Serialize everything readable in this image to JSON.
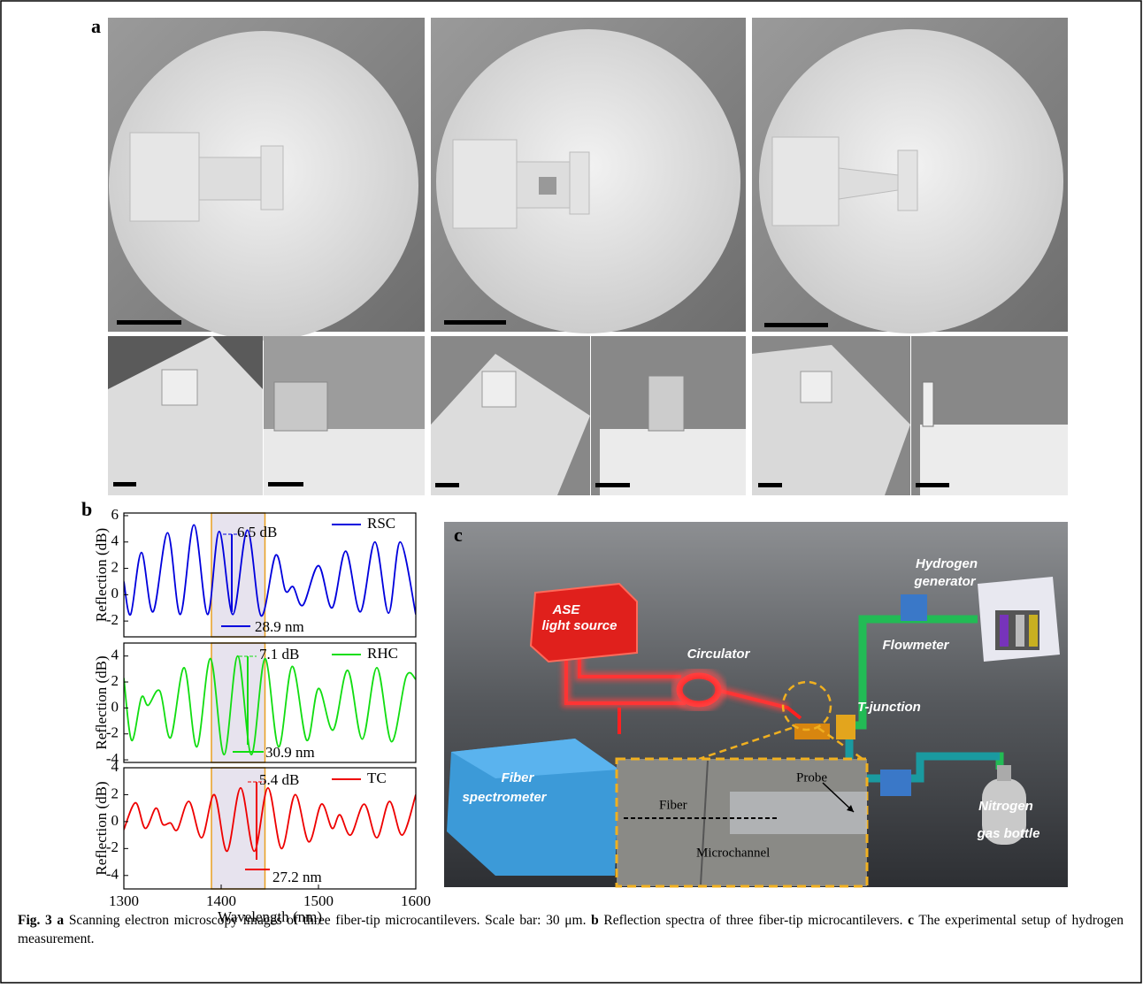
{
  "figure": {
    "panel_labels": [
      "a",
      "b",
      "c"
    ],
    "caption": {
      "fig": "Fig. 3",
      "a": "a",
      "a_text": "Scanning electron microscopy images of three fiber-tip microcantilevers. Scale bar: 30 μm.",
      "b": "b",
      "b_text": "Reflection spectra of three fiber-tip microcantilevers.",
      "c": "c",
      "c_text": "The experimental setup of hydrogen measurement."
    }
  },
  "setup": {
    "ase_1": "ASE",
    "ase_2": "light source",
    "circulator": "Circulator",
    "spectrometer_1": "Fiber",
    "spectrometer_2": "spectrometer",
    "hydrogen_1": "Hydrogen",
    "hydrogen_2": "generator",
    "flowmeter": "Flowmeter",
    "tjunction": "T-junction",
    "nitrogen_1": "Nitrogen",
    "nitrogen_2": "gas bottle",
    "probe": "Probe",
    "fiber": "Fiber",
    "microchannel": "Microchannel"
  },
  "chart_data": [
    {
      "type": "line",
      "y_label": "Reflection (dB)",
      "xlim": [
        1300,
        1600
      ],
      "ylim": [
        -3.2,
        6.2
      ],
      "yticks": [
        -2,
        0,
        2,
        4,
        6
      ],
      "highlight_x": [
        1390,
        1445
      ],
      "annotations": [
        "6.5 dB",
        "28.9 nm"
      ],
      "series": [
        {
          "name": "RSC",
          "color": "#0000dd",
          "x": [
            1300,
            1307,
            1318,
            1330,
            1345,
            1358,
            1372,
            1386,
            1398,
            1412,
            1427,
            1441,
            1456,
            1466,
            1474,
            1484,
            1500,
            1514,
            1528,
            1543,
            1558,
            1572,
            1584,
            1600
          ],
          "values": [
            1,
            -1.5,
            3.2,
            -1.3,
            4.7,
            -1.5,
            5.3,
            -1.5,
            4.8,
            -1.5,
            4.9,
            -1.6,
            3.0,
            0.3,
            0.6,
            -0.8,
            2.2,
            -1.0,
            3.3,
            -1.3,
            4.0,
            -1.4,
            4.0,
            -1.5
          ]
        }
      ]
    },
    {
      "type": "line",
      "y_label": "Reflection (dB)",
      "xlim": [
        1300,
        1600
      ],
      "ylim": [
        -4.2,
        5
      ],
      "yticks": [
        -4,
        -2,
        0,
        2,
        4
      ],
      "highlight_x": [
        1390,
        1445
      ],
      "annotations": [
        "7.1 dB",
        "30.9 nm"
      ],
      "series": [
        {
          "name": "RHC",
          "color": "#11dd11",
          "x": [
            1300,
            1308,
            1318,
            1325,
            1337,
            1348,
            1362,
            1375,
            1389,
            1403,
            1417,
            1431,
            1445,
            1459,
            1473,
            1488,
            1500,
            1515,
            1530,
            1545,
            1560,
            1575,
            1590,
            1600
          ],
          "values": [
            2.3,
            -2.5,
            0.8,
            0.2,
            1.3,
            -2.3,
            3.1,
            -3,
            3.8,
            -3.6,
            4.0,
            -3.6,
            3.8,
            -3,
            3.2,
            -2.5,
            1.5,
            -1.7,
            2.9,
            -2.4,
            3.1,
            -2.6,
            2.4,
            2.2
          ]
        }
      ]
    },
    {
      "type": "line",
      "y_label": "Reflection (dB)",
      "x_label": "Wavelength (nm)",
      "xlim": [
        1300,
        1600
      ],
      "ylim": [
        -5,
        4
      ],
      "yticks": [
        -4,
        -2,
        0,
        2,
        4
      ],
      "xticks": [
        1300,
        1400,
        1500,
        1600
      ],
      "highlight_x": [
        1390,
        1445
      ],
      "annotations": [
        "5.4 dB",
        "27.2 nm"
      ],
      "series": [
        {
          "name": "TC",
          "color": "#ee0000",
          "x": [
            1300,
            1312,
            1322,
            1333,
            1340,
            1348,
            1355,
            1367,
            1380,
            1393,
            1406,
            1420,
            1434,
            1448,
            1462,
            1476,
            1490,
            1503,
            1514,
            1522,
            1533,
            1547,
            1560,
            1573,
            1586,
            1600
          ],
          "values": [
            -0.6,
            1.4,
            -0.5,
            1.0,
            -0.2,
            -0.1,
            -0.6,
            1.5,
            -1.2,
            2.0,
            -2.2,
            2.5,
            -2.2,
            2.5,
            -2.0,
            2.0,
            -1.5,
            1.3,
            -0.5,
            0.5,
            -1.0,
            1.3,
            -1.2,
            1.5,
            -1.0,
            2.0
          ]
        }
      ]
    }
  ]
}
